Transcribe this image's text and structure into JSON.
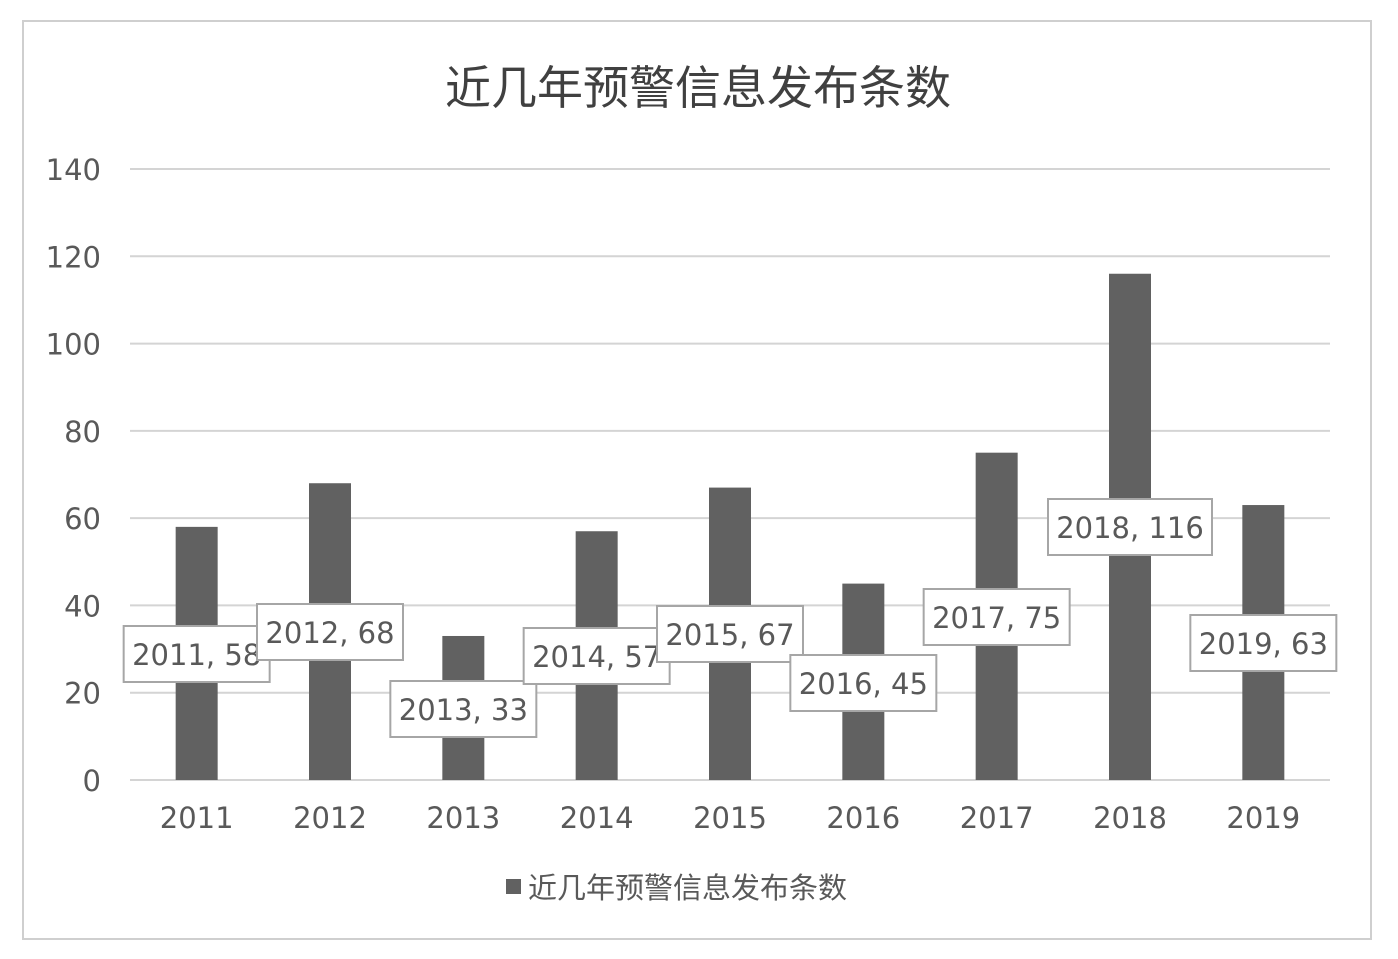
{
  "chart_data": {
    "type": "bar",
    "title": "近几年预警信息发布条数",
    "categories": [
      "2011",
      "2012",
      "2013",
      "2014",
      "2015",
      "2016",
      "2017",
      "2018",
      "2019"
    ],
    "series": [
      {
        "name": "近几年预警信息发布条数",
        "values": [
          58,
          68,
          33,
          57,
          67,
          45,
          75,
          116,
          63
        ]
      }
    ],
    "data_labels": [
      "2011, 58",
      "2012, 68",
      "2013, 33",
      "2014, 57",
      "2015, 67",
      "2016, 45",
      "2017, 75",
      "2018, 116",
      "2019, 63"
    ],
    "y_ticks": [
      "0",
      "20",
      "40",
      "60",
      "80",
      "100",
      "120",
      "140"
    ],
    "ylim": [
      0,
      140
    ],
    "grid": true,
    "legend": "bottom",
    "colors": {
      "bar": "#616161",
      "grid": "#d4d4d4",
      "text": "#595959",
      "title": "#404040",
      "border": "#cfcfcf",
      "label_border": "#a6a6a6"
    }
  }
}
